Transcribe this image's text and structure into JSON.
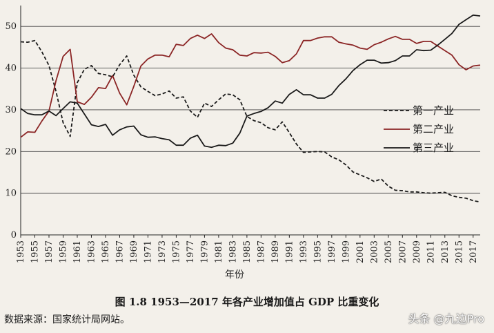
{
  "figure": {
    "caption": "图 1.8   1953—2017 年各产业增加值占 GDP 比重变化",
    "source": "数据来源：国家统计局网站。",
    "watermark": "头条 @九边Pro"
  },
  "chart_data": {
    "type": "line",
    "title": "",
    "xlabel": "年份",
    "ylabel": "",
    "ylim": [
      0,
      55
    ],
    "xlim": [
      1953,
      2018
    ],
    "yticks": [
      0,
      10,
      20,
      30,
      40,
      50
    ],
    "xticks": [
      "1953",
      "1955",
      "1957",
      "1959",
      "1961",
      "1963",
      "1965",
      "1967",
      "1969",
      "1971",
      "1973",
      "1975",
      "1977",
      "1979",
      "1981",
      "1983",
      "1985",
      "1987",
      "1989",
      "1991",
      "1993",
      "1995",
      "1997",
      "1999",
      "2001",
      "2003",
      "2005",
      "2007",
      "2009",
      "2011",
      "2013",
      "2015",
      "2017"
    ],
    "grid": "horizontal",
    "legend_position": "right",
    "x": [
      1953,
      1954,
      1955,
      1956,
      1957,
      1958,
      1959,
      1960,
      1961,
      1962,
      1963,
      1964,
      1965,
      1966,
      1967,
      1968,
      1969,
      1970,
      1971,
      1972,
      1973,
      1974,
      1975,
      1976,
      1977,
      1978,
      1979,
      1980,
      1981,
      1982,
      1983,
      1984,
      1985,
      1986,
      1987,
      1988,
      1989,
      1990,
      1991,
      1992,
      1993,
      1994,
      1995,
      1996,
      1997,
      1998,
      1999,
      2000,
      2001,
      2002,
      2003,
      2004,
      2005,
      2006,
      2007,
      2008,
      2009,
      2010,
      2011,
      2012,
      2013,
      2014,
      2015,
      2016,
      2017,
      2018
    ],
    "series": [
      {
        "name": "第一产业",
        "style": "dashed",
        "color": "#1a1a1a",
        "values": [
          46.3,
          46.2,
          46.6,
          43.9,
          40.6,
          34.4,
          26.9,
          23.6,
          36.5,
          39.7,
          40.6,
          38.7,
          38.4,
          37.9,
          40.8,
          42.9,
          38.3,
          35.5,
          34.4,
          33.4,
          33.8,
          34.5,
          32.8,
          33.1,
          29.7,
          28.2,
          31.6,
          30.8,
          32.4,
          33.8,
          33.6,
          32.4,
          28.4,
          27.4,
          26.9,
          25.7,
          25.2,
          27.1,
          24.5,
          21.8,
          19.8,
          19.9,
          20.0,
          19.9,
          18.7,
          18.0,
          16.8,
          15.1,
          14.4,
          13.7,
          12.8,
          13.4,
          11.7,
          10.7,
          10.6,
          10.3,
          10.3,
          10.1,
          10.0,
          10.1,
          10.2,
          9.4,
          9.0,
          8.8,
          8.2,
          7.9
        ]
      },
      {
        "name": "第二产业",
        "style": "solid",
        "color": "#8b2525",
        "values": [
          23.4,
          24.7,
          24.6,
          27.3,
          29.7,
          37.0,
          42.8,
          44.5,
          31.9,
          31.3,
          33.0,
          35.3,
          35.1,
          38.2,
          34.0,
          31.2,
          35.6,
          40.5,
          42.2,
          43.1,
          43.1,
          42.7,
          45.7,
          45.4,
          47.1,
          47.9,
          47.1,
          48.2,
          46.1,
          44.8,
          44.4,
          43.1,
          42.9,
          43.7,
          43.6,
          43.8,
          42.8,
          41.3,
          41.8,
          43.4,
          46.6,
          46.6,
          47.2,
          47.5,
          47.5,
          46.2,
          45.8,
          45.5,
          44.8,
          44.5,
          45.6,
          46.2,
          47.0,
          47.6,
          46.9,
          46.9,
          45.9,
          46.4,
          46.4,
          45.3,
          44.2,
          43.1,
          40.8,
          39.6,
          40.5,
          40.7
        ]
      },
      {
        "name": "第三产业",
        "style": "solid",
        "color": "#1a1a1a",
        "values": [
          30.3,
          29.1,
          28.8,
          28.8,
          29.7,
          28.6,
          30.3,
          31.9,
          31.6,
          29.0,
          26.4,
          26.0,
          26.5,
          23.9,
          25.2,
          25.9,
          26.1,
          24.0,
          23.4,
          23.5,
          23.1,
          22.8,
          21.5,
          21.5,
          23.2,
          23.9,
          21.3,
          21.0,
          21.5,
          21.4,
          22.0,
          24.4,
          28.5,
          29.1,
          29.6,
          30.5,
          32.1,
          31.6,
          33.7,
          34.8,
          33.6,
          33.6,
          32.8,
          32.8,
          33.7,
          35.8,
          37.4,
          39.4,
          40.8,
          41.9,
          41.9,
          41.2,
          41.3,
          41.8,
          42.9,
          42.9,
          44.4,
          44.2,
          44.3,
          45.5,
          46.9,
          48.3,
          50.5,
          51.6,
          52.7,
          52.5
        ]
      }
    ]
  }
}
